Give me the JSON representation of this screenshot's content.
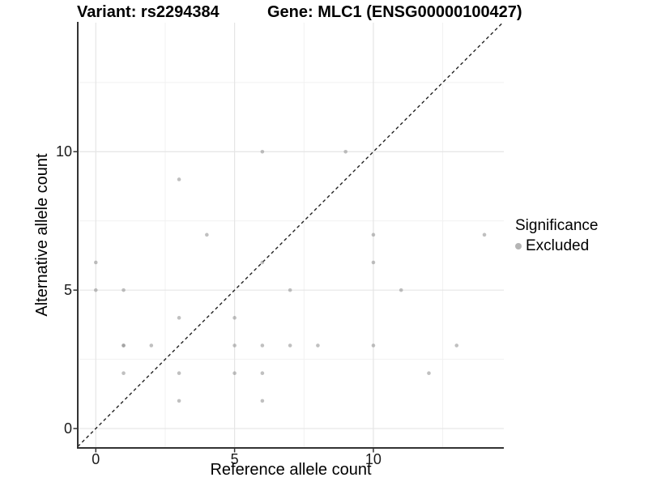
{
  "chart_data": {
    "type": "scatter",
    "title_left": "Variant: rs2294384",
    "title_right": "Gene: MLC1 (ENSG00000100427)",
    "xlabel": "Reference allele count",
    "ylabel": "Alternative allele count",
    "xticks": [
      "0",
      "5",
      "10"
    ],
    "yticks": [
      "0",
      "5",
      "10"
    ],
    "xtick_values": [
      0,
      5,
      10
    ],
    "ytick_values": [
      0,
      5,
      10
    ],
    "minor_ticks_x": [
      2.5,
      7.5,
      12.5
    ],
    "minor_ticks_y": [
      2.5,
      7.5,
      12.5
    ],
    "xlim": [
      -0.65,
      14.7
    ],
    "ylim": [
      -0.7,
      14.66
    ],
    "grid": true,
    "legend_position": "right",
    "reference_line": {
      "type": "identity",
      "slope": 1,
      "intercept": 0,
      "style": "dashed"
    },
    "series": [
      {
        "name": "Excluded",
        "point_color": "#8c8c8c",
        "point_alpha": 0.55,
        "points": [
          [
            0,
            5
          ],
          [
            0,
            6
          ],
          [
            1,
            2
          ],
          [
            1,
            3
          ],
          [
            1,
            3
          ],
          [
            1,
            5
          ],
          [
            2,
            3
          ],
          [
            3,
            1
          ],
          [
            3,
            2
          ],
          [
            3,
            4
          ],
          [
            3,
            9
          ],
          [
            4,
            7
          ],
          [
            5,
            2
          ],
          [
            5,
            3
          ],
          [
            5,
            4
          ],
          [
            6,
            1
          ],
          [
            6,
            2
          ],
          [
            6,
            3
          ],
          [
            6,
            6
          ],
          [
            6,
            10
          ],
          [
            7,
            3
          ],
          [
            7,
            5
          ],
          [
            8,
            3
          ],
          [
            9,
            10
          ],
          [
            10,
            3
          ],
          [
            10,
            6
          ],
          [
            10,
            7
          ],
          [
            11,
            5
          ],
          [
            12,
            2
          ],
          [
            13,
            3
          ],
          [
            14,
            7
          ]
        ]
      }
    ],
    "legend": {
      "title": "Significance",
      "items": [
        {
          "label": "Excluded",
          "color": "#b5b5b5",
          "marker": "circle"
        }
      ]
    },
    "colors": {
      "background": "#ffffff",
      "grid_major": "#e5e5e5",
      "grid_minor": "#f1f1f1",
      "axis_line": "#333333",
      "tick_mark": "#333333",
      "reference_line": "#222222",
      "text": "#000000"
    }
  }
}
